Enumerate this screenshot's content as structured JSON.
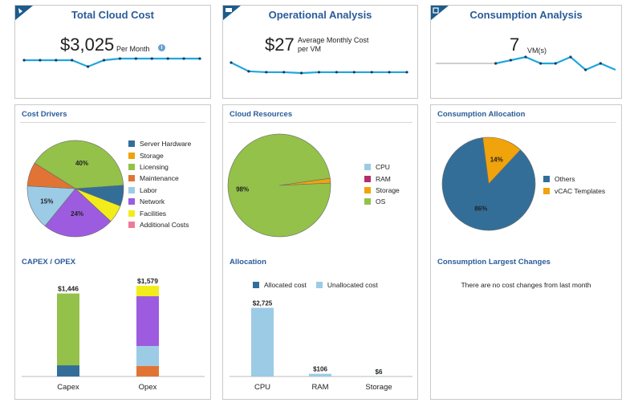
{
  "total_cost": {
    "title": "Total Cloud Cost",
    "value": "$3,025",
    "unit": "Per Month",
    "info_icon": "info-icon",
    "sparkline": [
      27,
      27,
      27,
      27,
      23,
      27,
      28,
      28,
      28,
      28,
      28,
      28
    ]
  },
  "operational": {
    "title": "Operational Analysis",
    "value": "$27",
    "unit_line1": "Average Monthly Cost",
    "unit_line2": "per VM",
    "sparkline": [
      90,
      80,
      79,
      79,
      78,
      79,
      79,
      79,
      79,
      79,
      79
    ]
  },
  "consumption": {
    "title": "Consumption Analysis",
    "value": "7",
    "unit": "VM(s)",
    "sparkline_gap_points": 4,
    "sparkline": [
      7,
      7.5,
      8,
      7,
      7,
      8,
      6,
      7,
      6
    ]
  },
  "cost_drivers": {
    "title": "Cost Drivers",
    "legend": [
      {
        "label": "Server Hardware",
        "color": "#336e99"
      },
      {
        "label": "Storage",
        "color": "#f0a30a"
      },
      {
        "label": "Licensing",
        "color": "#93c14a"
      },
      {
        "label": "Maintenance",
        "color": "#e17434"
      },
      {
        "label": "Labor",
        "color": "#9ccbe6"
      },
      {
        "label": "Network",
        "color": "#9d5ce0"
      },
      {
        "label": "Facilities",
        "color": "#f2ec1b"
      },
      {
        "label": "Additional Costs",
        "color": "#ef7a97"
      }
    ]
  },
  "cost_pie": {
    "type": "pie",
    "slices": [
      {
        "name": "Licensing",
        "value": 40,
        "color": "#93c14a",
        "label": "40%"
      },
      {
        "name": "Server Hardware",
        "value": 7,
        "color": "#336e99",
        "label": ""
      },
      {
        "name": "Facilities",
        "value": 6,
        "color": "#f2ec1b",
        "label": ""
      },
      {
        "name": "Network",
        "value": 24,
        "color": "#9d5ce0",
        "label": "24%"
      },
      {
        "name": "Labor",
        "value": 15,
        "color": "#9ccbe6",
        "label": "15%"
      },
      {
        "name": "Maintenance",
        "value": 8,
        "color": "#e17434",
        "label": ""
      }
    ]
  },
  "capex_opex": {
    "title": "CAPEX / OPEX",
    "chart_data": {
      "type": "bar",
      "stacked": true,
      "categories": [
        "Capex",
        "Opex"
      ],
      "totals": [
        "$1,446",
        "$1,579"
      ],
      "series": [
        {
          "color": "#336e99",
          "values": [
            195,
            0
          ]
        },
        {
          "color": "#93c14a",
          "values": [
            1251,
            0
          ]
        },
        {
          "color": "#e17434",
          "values": [
            0,
            185
          ]
        },
        {
          "color": "#9ccbe6",
          "values": [
            0,
            345
          ]
        },
        {
          "color": "#9d5ce0",
          "values": [
            0,
            868
          ]
        },
        {
          "color": "#f2ec1b",
          "values": [
            0,
            181
          ]
        }
      ],
      "ylim": [
        0,
        1650
      ]
    }
  },
  "cloud_resources": {
    "title": "Cloud Resources",
    "legend": [
      {
        "label": "CPU",
        "color": "#9ccbe6"
      },
      {
        "label": "RAM",
        "color": "#b0306c"
      },
      {
        "label": "Storage",
        "color": "#f0a30a"
      },
      {
        "label": "OS",
        "color": "#93c14a"
      }
    ]
  },
  "resources_pie": {
    "type": "pie",
    "slices": [
      {
        "name": "Storage",
        "value": 1.5,
        "color": "#f0a30a",
        "label": ""
      },
      {
        "name": "OS",
        "value": 98.5,
        "color": "#93c14a",
        "label": "98%"
      }
    ]
  },
  "allocation": {
    "title": "Allocation",
    "legend": [
      {
        "label": "Allocated cost",
        "color": "#336e99"
      },
      {
        "label": "Unallocated cost",
        "color": "#9ccbe6"
      }
    ],
    "chart_data": {
      "type": "bar",
      "categories": [
        "CPU",
        "RAM",
        "Storage"
      ],
      "series": [
        {
          "name": "Unallocated cost",
          "values": [
            2725,
            106,
            6
          ]
        }
      ],
      "data_labels": [
        "$2,725",
        "$106",
        "$6"
      ],
      "ylim": [
        0,
        2900
      ]
    }
  },
  "consumption_allocation": {
    "title": "Consumption Allocation",
    "legend": [
      {
        "label": "Others",
        "color": "#336e99"
      },
      {
        "label": "vCAC Templates",
        "color": "#f0a30a"
      }
    ]
  },
  "consumption_pie": {
    "type": "pie",
    "slices": [
      {
        "name": "Others",
        "value": 86,
        "color": "#336e99",
        "label": "86%"
      },
      {
        "name": "vCAC Templates",
        "value": 14,
        "color": "#f0a30a",
        "label": "14%"
      }
    ]
  },
  "largest_changes": {
    "title": "Consumption Largest Changes",
    "message": "There are no cost changes from last month"
  },
  "colors": {
    "accent": "#2a5b99",
    "line": "#1fa6e0",
    "marker": "#1a3b5c"
  }
}
